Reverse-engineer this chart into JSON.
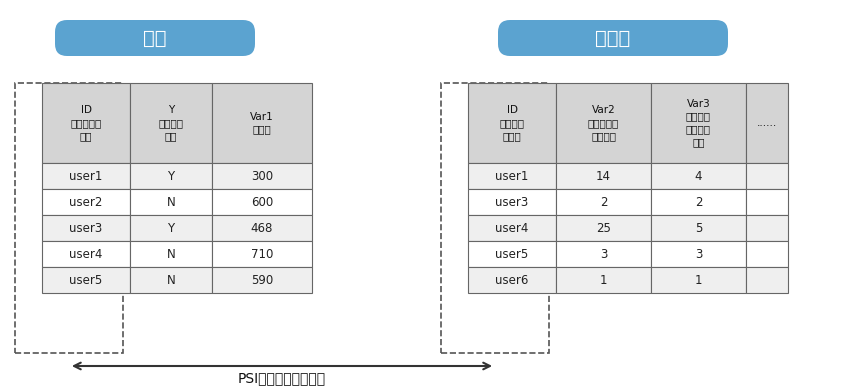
{
  "fig_width": 8.46,
  "fig_height": 3.88,
  "dpi": 100,
  "bg_color": "#ffffff",
  "header_bg": "#5ba3d0",
  "header_text_color": "#ffffff",
  "table_header_bg": "#d4d4d4",
  "table_row_bg": "#efefef",
  "table_row_alt_bg": "#ffffff",
  "border_color": "#666666",
  "dashed_color": "#555555",
  "bank_title": "银行",
  "operator_title": "运营商",
  "bank_col_headers": [
    "ID\n客户唯一识\n别号",
    "Y\n是否逾期\n标签",
    "Var1\n信用分"
  ],
  "bank_data": [
    [
      "user1",
      "Y",
      "300"
    ],
    [
      "user2",
      "N",
      "600"
    ],
    [
      "user3",
      "Y",
      "468"
    ],
    [
      "user4",
      "N",
      "710"
    ],
    [
      "user5",
      "N",
      "590"
    ]
  ],
  "op_col_headers": [
    "ID\n客户唯一\n识别号",
    "Var2\n近七天通话\n平均时长",
    "Var3\n近三个月\n接入电话\n次数",
    "......"
  ],
  "op_data": [
    [
      "user1",
      "14",
      "4"
    ],
    [
      "user3",
      "2",
      "2"
    ],
    [
      "user4",
      "25",
      "5"
    ],
    [
      "user5",
      "3",
      "3"
    ],
    [
      "user6",
      "1",
      "1"
    ]
  ],
  "bottom_label": "PSI技术匹配交集客户",
  "arrow_color": "#333333"
}
